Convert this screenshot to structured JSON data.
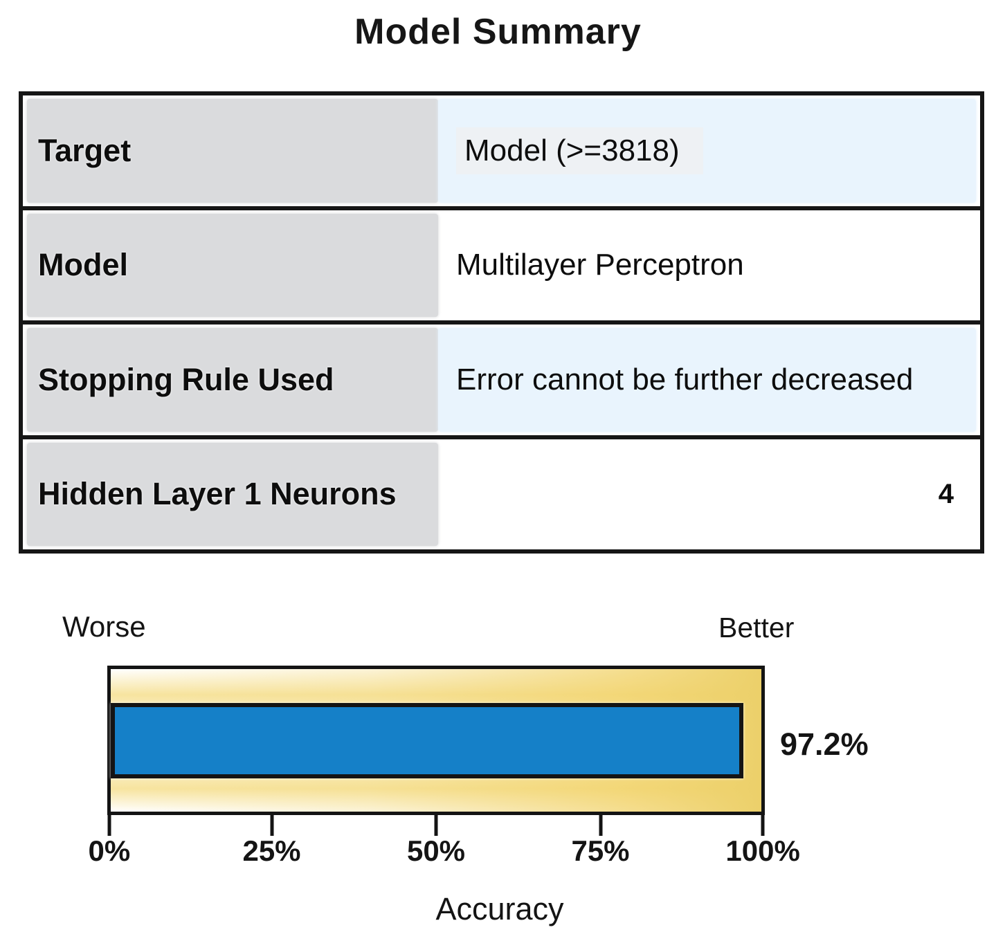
{
  "title": "Model Summary",
  "table": {
    "rows": [
      {
        "label": "Target",
        "value": "Model (>=3818)"
      },
      {
        "label": "Model",
        "value": "Multilayer Perceptron"
      },
      {
        "label": "Stopping Rule Used",
        "value": "Error cannot be further decreased"
      },
      {
        "label": "Hidden Layer 1 Neurons",
        "value": "4"
      }
    ]
  },
  "chart_data": {
    "type": "bar",
    "orientation": "horizontal",
    "series": [
      {
        "name": "Accuracy",
        "values": [
          97.2
        ]
      }
    ],
    "value_label": "97.2%",
    "xlabel": "Accuracy",
    "xlim": [
      0,
      100
    ],
    "tick_labels": [
      "0%",
      "25%",
      "50%",
      "75%",
      "100%"
    ],
    "tick_positions": [
      0,
      25,
      50,
      75,
      100
    ],
    "left_annotation": "Worse",
    "right_annotation": "Better",
    "legend": "none",
    "grid": "off",
    "bar_color": "#1580c8",
    "gauge_background_color": "#f3d87a"
  },
  "colors": {
    "bar_blue": "#1580c8",
    "cell_light_blue": "#e9f4fd",
    "cell_grey": "#dadbdd",
    "border_black": "#161616",
    "gauge_gold": "#f3d87a"
  }
}
